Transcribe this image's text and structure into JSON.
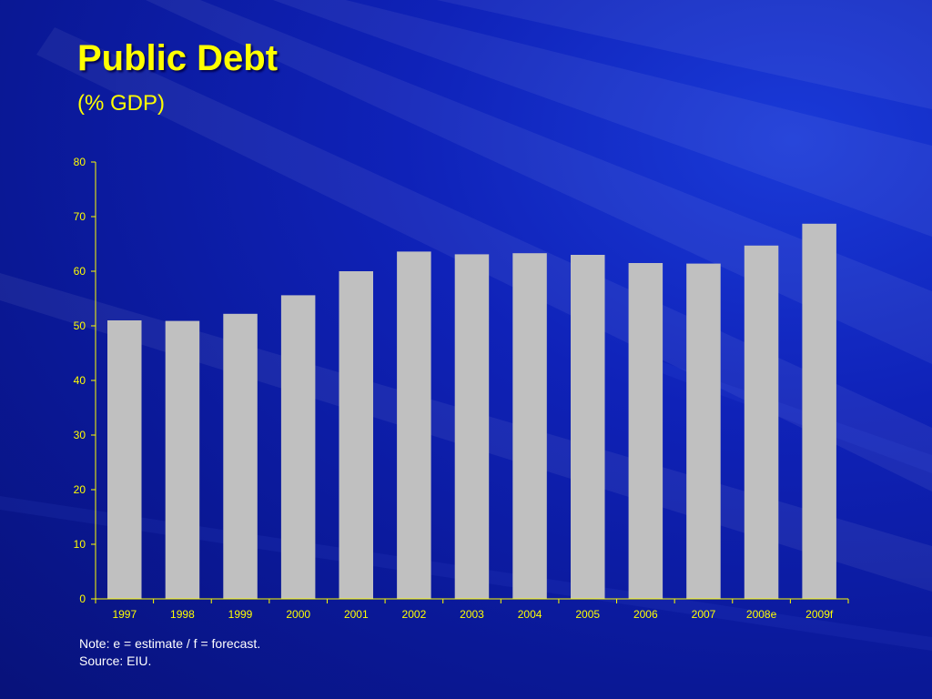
{
  "slide": {
    "title": "Public Debt",
    "subtitle": "(% GDP)",
    "note": "Note: e = estimate / f = forecast.",
    "source": "Source: EIU."
  },
  "colors": {
    "bar": "#c0c0c0",
    "axis": "#ffff00",
    "text": "#ffff00",
    "background": "#0f22b8"
  },
  "chart_data": {
    "type": "bar",
    "categories": [
      "1997",
      "1998",
      "1999",
      "2000",
      "2001",
      "2002",
      "2003",
      "2004",
      "2005",
      "2006",
      "2007",
      "2008e",
      "2009f"
    ],
    "values": [
      51.0,
      50.9,
      52.2,
      55.6,
      60.0,
      63.6,
      63.1,
      63.3,
      63.0,
      61.5,
      61.4,
      64.7,
      68.7
    ],
    "yticks": [
      0,
      10,
      20,
      30,
      40,
      50,
      60,
      70,
      80
    ],
    "ylim": [
      0,
      80
    ],
    "grid": false,
    "legend": "none"
  }
}
